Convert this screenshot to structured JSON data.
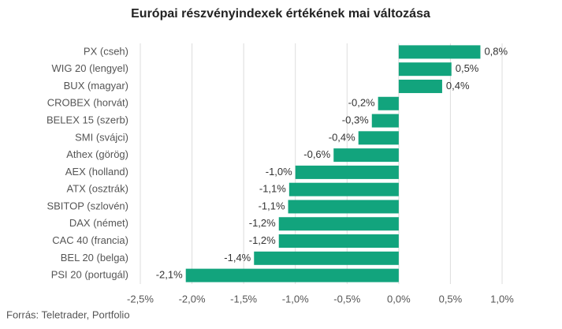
{
  "chart_data": {
    "type": "barh",
    "title": "Európai részvényindexek értékének mai változása",
    "source": "Forrás: Teletrader, Portfolio",
    "categories": [
      "PX (cseh)",
      "WIG 20 (lengyel)",
      "BUX (magyar)",
      "CROBEX (horvát)",
      "BELEX 15 (szerb)",
      "SMI (svájci)",
      "Athex (görög)",
      "AEX (holland)",
      "ATX (osztrák)",
      "SBITOP (szlovén)",
      "DAX (német)",
      "CAC 40 (francia)",
      "BEL 20 (belga)",
      "PSI 20 (portugál)"
    ],
    "values": [
      0.79,
      0.51,
      0.42,
      -0.2,
      -0.26,
      -0.39,
      -0.63,
      -1.0,
      -1.06,
      -1.07,
      -1.16,
      -1.16,
      -1.4,
      -2.06
    ],
    "value_labels": [
      "0,8%",
      "0,5%",
      "0,4%",
      "-0,2%",
      "-0,3%",
      "-0,4%",
      "-0,6%",
      "-1,0%",
      "-1,1%",
      "-1,1%",
      "-1,2%",
      "-1,2%",
      "-1,4%",
      "-2,1%"
    ],
    "color": "#12a47d",
    "xlim": [
      -2.5,
      1.0
    ],
    "xticks": [
      {
        "value": -2.5,
        "label": "-2,5%"
      },
      {
        "value": -2.0,
        "label": "-2,0%"
      },
      {
        "value": -1.5,
        "label": "-1,5%"
      },
      {
        "value": -1.0,
        "label": "-1,0%"
      },
      {
        "value": -0.5,
        "label": "-0,5%"
      },
      {
        "value": 0,
        "label": "0,0%"
      },
      {
        "value": 0.5,
        "label": "0,5%"
      },
      {
        "value": 1.0,
        "label": "1,0%"
      }
    ],
    "grid": true
  }
}
